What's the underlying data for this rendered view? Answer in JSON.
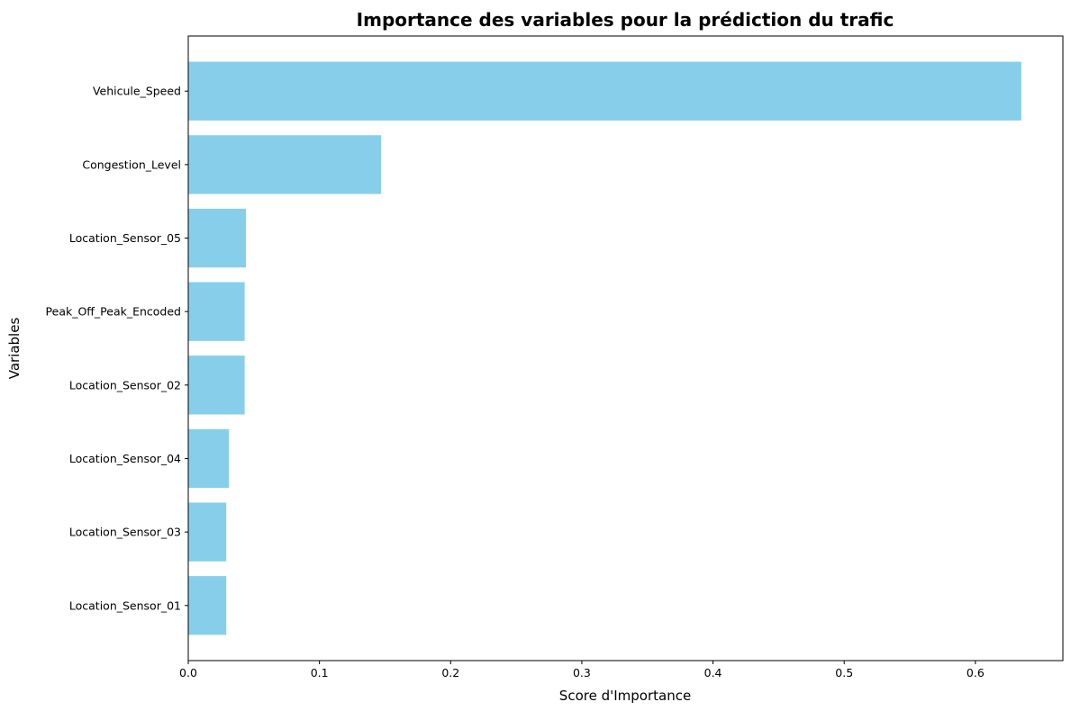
{
  "chart_data": {
    "type": "bar",
    "orientation": "horizontal",
    "title": "Importance des variables pour la prédiction du trafic",
    "xlabel": "Score d'Importance",
    "ylabel": "Variables",
    "categories": [
      "Vehicule_Speed",
      "Congestion_Level",
      "Location_Sensor_05",
      "Peak_Off_Peak_Encoded",
      "Location_Sensor_02",
      "Location_Sensor_04",
      "Location_Sensor_03",
      "Location_Sensor_01"
    ],
    "values": [
      0.635,
      0.147,
      0.044,
      0.043,
      0.043,
      0.031,
      0.029,
      0.029
    ],
    "xlim": [
      0,
      0.6667
    ],
    "xticks": [
      "0.0",
      "0.1",
      "0.2",
      "0.3",
      "0.4",
      "0.5",
      "0.6"
    ],
    "bar_color": "#87ceeb",
    "grid": false,
    "legend": false
  }
}
